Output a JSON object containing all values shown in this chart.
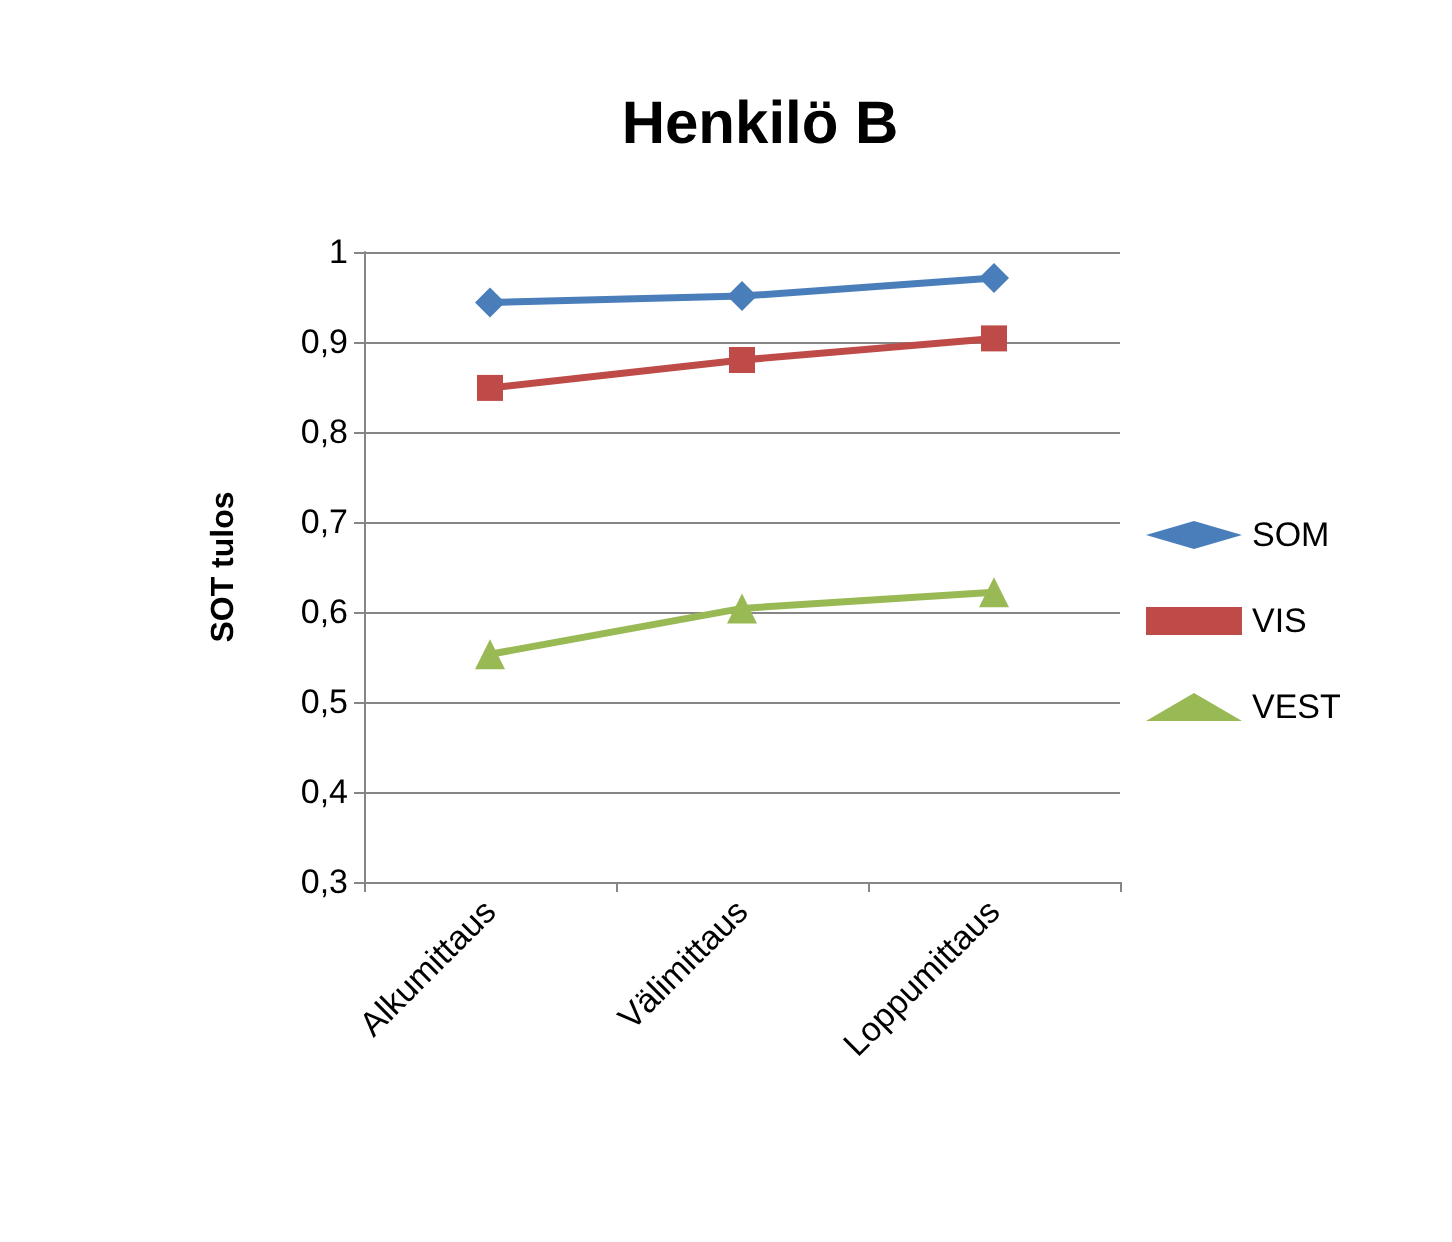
{
  "chart_data": {
    "type": "line",
    "title": "Henkilö B",
    "ylabel": "SOT tulos",
    "categories": [
      "Alkumittaus",
      "Välimittaus",
      "Loppumittaus"
    ],
    "series": [
      {
        "name": "SOM",
        "color": "#4a7ebb",
        "marker": "diamond",
        "values": [
          0.944,
          0.951,
          0.971
        ]
      },
      {
        "name": "VIS",
        "color": "#be4b48",
        "marker": "square",
        "values": [
          0.849,
          0.88,
          0.904
        ]
      },
      {
        "name": "VEST",
        "color": "#98b954",
        "marker": "triangle",
        "values": [
          0.553,
          0.604,
          0.622
        ]
      }
    ],
    "ylim": [
      0.3,
      1
    ],
    "yticks": [
      {
        "value": 0.3,
        "label": "0,3"
      },
      {
        "value": 0.4,
        "label": "0,4"
      },
      {
        "value": 0.5,
        "label": "0,5"
      },
      {
        "value": 0.6,
        "label": "0,6"
      },
      {
        "value": 0.7,
        "label": "0,7"
      },
      {
        "value": 0.8,
        "label": "0,8"
      },
      {
        "value": 0.9,
        "label": "0,9"
      },
      {
        "value": 1,
        "label": "1"
      }
    ],
    "grid": "y",
    "legend": "right",
    "line_style": "solid"
  }
}
